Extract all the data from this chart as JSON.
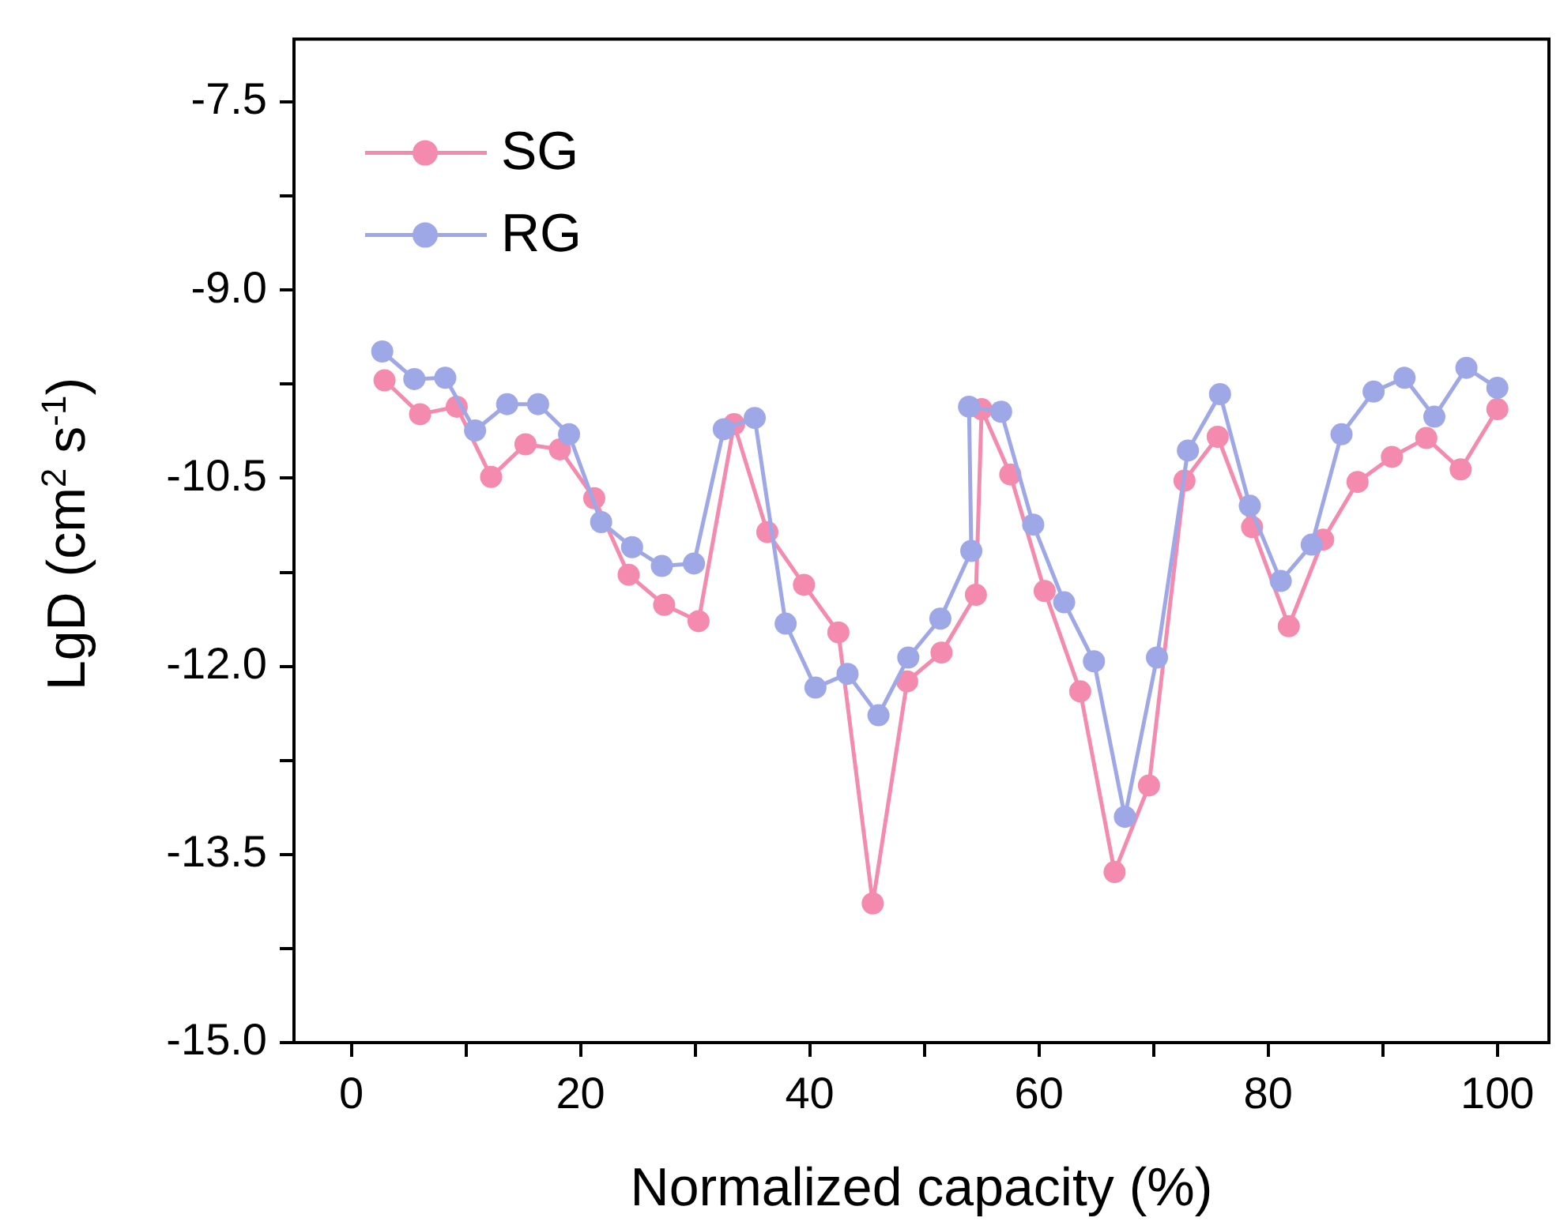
{
  "chart_data": {
    "type": "line",
    "xlabel": "Normalized capacity (%)",
    "ylabel": "LgD (cm$^{2}$ s$^{-1}$)",
    "xlim": [
      -5,
      104.5
    ],
    "ylim": [
      -15,
      -7
    ],
    "xticks": [
      0,
      {
        "value": 10,
        "label": null
      },
      20,
      {
        "value": 30,
        "label": null
      },
      40,
      {
        "value": 50,
        "label": null
      },
      60,
      {
        "value": 70,
        "label": null
      },
      80,
      {
        "value": 90,
        "label": null
      },
      100
    ],
    "yticks": [
      {
        "value": -15,
        "label": "-15.0"
      },
      {
        "value": -14.25,
        "label": null
      },
      {
        "value": -13.5,
        "label": "-13.5"
      },
      {
        "value": -12.75,
        "label": null
      },
      {
        "value": -12,
        "label": "-12.0"
      },
      {
        "value": -11.25,
        "label": null
      },
      {
        "value": -10.5,
        "label": "-10.5"
      },
      {
        "value": -9.75,
        "label": null
      },
      {
        "value": -9,
        "label": "-9.0"
      },
      {
        "value": -8.25,
        "label": null
      },
      {
        "value": -7.5,
        "label": "-7.5"
      }
    ],
    "grid": false,
    "legend": "top left",
    "marker": "circle",
    "line_style": "solid",
    "series": [
      {
        "name": "SG",
        "color": "#f48aae",
        "x": [
          2.9,
          6.0,
          9.2,
          12.2,
          15.2,
          18.2,
          21.2,
          24.2,
          27.3,
          30.3,
          33.4,
          36.3,
          39.5,
          42.5,
          45.5,
          48.5,
          51.5,
          54.5,
          55.0,
          57.5,
          60.5,
          63.6,
          66.6,
          69.6,
          72.7,
          75.6,
          78.6,
          81.8,
          84.8,
          87.8,
          90.8,
          93.8,
          96.8,
          100
        ],
        "values": [
          -9.72,
          -9.99,
          -9.93,
          -10.49,
          -10.23,
          -10.27,
          -10.66,
          -11.27,
          -11.51,
          -11.64,
          -10.07,
          -10.93,
          -11.35,
          -11.73,
          -13.89,
          -12.12,
          -11.89,
          -11.43,
          -9.95,
          -10.47,
          -11.4,
          -12.2,
          -13.64,
          -12.95,
          -10.52,
          -10.17,
          -10.89,
          -11.68,
          -10.99,
          -10.53,
          -10.33,
          -10.18,
          -10.43,
          -9.95
        ]
      },
      {
        "name": "RG",
        "color": "#9fa8e6",
        "x": [
          2.7,
          5.5,
          8.2,
          10.8,
          13.6,
          16.3,
          19.0,
          21.8,
          24.5,
          27.1,
          29.9,
          32.5,
          35.2,
          37.9,
          40.5,
          43.3,
          46.0,
          48.6,
          51.4,
          54.1,
          53.9,
          56.7,
          59.5,
          62.2,
          64.8,
          67.5,
          70.3,
          73.0,
          75.8,
          78.4,
          81.1,
          83.8,
          86.4,
          89.2,
          91.9,
          94.5,
          97.3,
          100
        ],
        "values": [
          -9.49,
          -9.71,
          -9.7,
          -10.12,
          -9.91,
          -9.91,
          -10.15,
          -10.85,
          -11.05,
          -11.2,
          -11.18,
          -10.11,
          -10.02,
          -11.66,
          -12.17,
          -12.06,
          -12.39,
          -11.93,
          -11.62,
          -11.08,
          -9.93,
          -9.97,
          -10.87,
          -11.49,
          -11.96,
          -13.2,
          -11.93,
          -10.28,
          -9.83,
          -10.72,
          -11.32,
          -11.03,
          -10.15,
          -9.81,
          -9.7,
          -10.01,
          -9.62,
          -9.78
        ]
      }
    ]
  }
}
